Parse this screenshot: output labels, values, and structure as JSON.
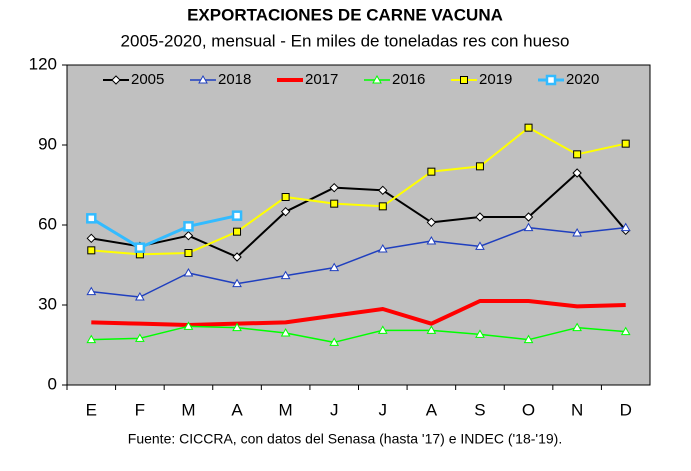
{
  "chart_data": {
    "type": "line",
    "title": "EXPORTACIONES DE CARNE VACUNA",
    "subtitle": "2005-2020, mensual - En miles de toneladas res con hueso",
    "source": "Fuente: CICCRA, con datos del Senasa (hasta '17) e INDEC ('18-'19).",
    "categories": [
      "E",
      "F",
      "M",
      "A",
      "M",
      "J",
      "J",
      "A",
      "S",
      "O",
      "N",
      "D"
    ],
    "ylim": [
      0,
      120
    ],
    "yticks": [
      0,
      30,
      60,
      90,
      120
    ],
    "background": "#c0c0c0",
    "series": [
      {
        "name": "2005",
        "color": "#000000",
        "marker": "diamond",
        "width": 2,
        "values": [
          55,
          52,
          56,
          48,
          65,
          74,
          73,
          61,
          63,
          63,
          79.5,
          58
        ]
      },
      {
        "name": "2018",
        "color": "#1f3fbf",
        "marker": "triangle",
        "width": 1.5,
        "values": [
          35,
          33,
          42,
          38,
          41,
          44,
          51,
          54,
          52,
          59,
          57,
          59
        ]
      },
      {
        "name": "2017",
        "color": "#ff0000",
        "marker": "none",
        "width": 4,
        "values": [
          23.5,
          23,
          22.5,
          23,
          23.5,
          26,
          28.5,
          23,
          31.5,
          31.5,
          29.5,
          30
        ]
      },
      {
        "name": "2016",
        "color": "#00ff00",
        "marker": "triangle",
        "width": 1.5,
        "values": [
          17,
          17.5,
          22,
          21.5,
          19.5,
          16,
          20.5,
          20.5,
          19,
          17,
          21.5,
          20
        ]
      },
      {
        "name": "2019",
        "color": "#ffff00",
        "marker": "square",
        "width": 2,
        "values": [
          50.5,
          49,
          49.5,
          57.5,
          70.5,
          68,
          67,
          80,
          82,
          96.5,
          86.5,
          90.5
        ]
      },
      {
        "name": "2020",
        "color": "#33bbff",
        "marker": "square-open",
        "width": 3,
        "values": [
          62.5,
          51.5,
          59.5,
          63.5,
          null,
          null,
          null,
          null,
          null,
          null,
          null,
          null
        ]
      }
    ]
  }
}
